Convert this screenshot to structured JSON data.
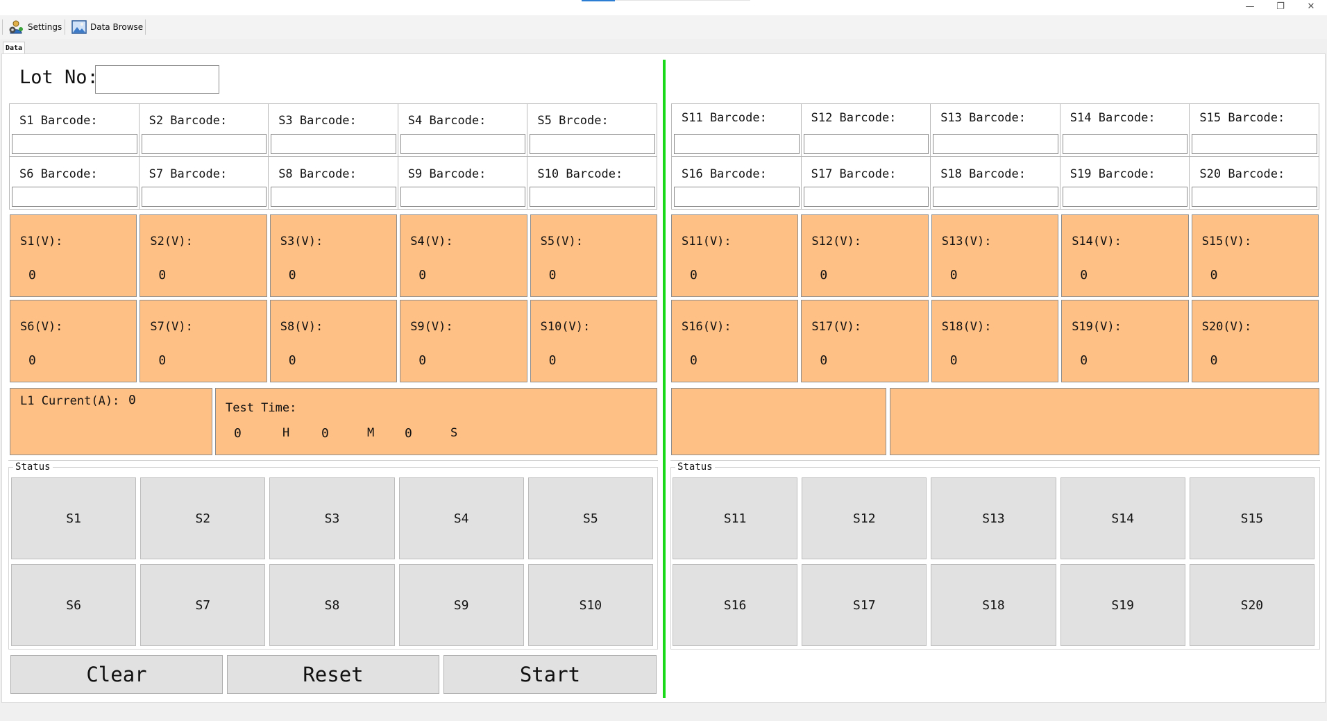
{
  "window": {
    "controls": {
      "minimize": "—",
      "restore": "❐",
      "close": "✕"
    }
  },
  "toolbar": {
    "settings_label": "Settings",
    "settings_icon": "settings-person-gear-icon",
    "data_browse_label": "Data Browse",
    "data_browse_icon": "image-picture-icon"
  },
  "tabs": {
    "data": "Data"
  },
  "lot": {
    "label": "Lot No:",
    "value": ""
  },
  "left": {
    "barcodes": [
      {
        "label": "S1 Barcode:",
        "value": ""
      },
      {
        "label": "S2 Barcode:",
        "value": ""
      },
      {
        "label": "S3 Barcode:",
        "value": ""
      },
      {
        "label": "S4 Barcode:",
        "value": ""
      },
      {
        "label": "S5 Brcode:",
        "value": ""
      },
      {
        "label": "S6 Barcode:",
        "value": ""
      },
      {
        "label": "S7 Barcode:",
        "value": ""
      },
      {
        "label": "S8 Barcode:",
        "value": ""
      },
      {
        "label": "S9 Barcode:",
        "value": ""
      },
      {
        "label": "S10 Barcode:",
        "value": ""
      }
    ],
    "voltages": [
      {
        "label": "S1(V):",
        "value": "0"
      },
      {
        "label": "S2(V):",
        "value": "0"
      },
      {
        "label": "S3(V):",
        "value": "0"
      },
      {
        "label": "S4(V):",
        "value": "0"
      },
      {
        "label": "S5(V):",
        "value": "0"
      },
      {
        "label": "S6(V):",
        "value": "0"
      },
      {
        "label": "S7(V):",
        "value": "0"
      },
      {
        "label": "S8(V):",
        "value": "0"
      },
      {
        "label": "S9(V):",
        "value": "0"
      },
      {
        "label": "S10(V):",
        "value": "0"
      }
    ],
    "current": {
      "label": "L1 Current(A):",
      "value": "0"
    },
    "test_time": {
      "label": "Test Time:",
      "hours": "0",
      "h_unit": "H",
      "minutes": "0",
      "m_unit": "M",
      "seconds": "0",
      "s_unit": "S"
    },
    "status_title": "Status",
    "status": [
      "S1",
      "S2",
      "S3",
      "S4",
      "S5",
      "S6",
      "S7",
      "S8",
      "S9",
      "S10"
    ]
  },
  "right": {
    "barcodes": [
      {
        "label": "S11 Barcode:",
        "value": ""
      },
      {
        "label": "S12 Barcode:",
        "value": ""
      },
      {
        "label": "S13 Barcode:",
        "value": ""
      },
      {
        "label": "S14 Barcode:",
        "value": ""
      },
      {
        "label": "S15 Barcode:",
        "value": ""
      },
      {
        "label": "S16 Barcode:",
        "value": ""
      },
      {
        "label": "S17 Barcode:",
        "value": ""
      },
      {
        "label": "S18 Barcode:",
        "value": ""
      },
      {
        "label": "S19 Barcode:",
        "value": ""
      },
      {
        "label": "S20 Barcode:",
        "value": ""
      }
    ],
    "voltages": [
      {
        "label": "S11(V):",
        "value": "0"
      },
      {
        "label": "S12(V):",
        "value": "0"
      },
      {
        "label": "S13(V):",
        "value": "0"
      },
      {
        "label": "S14(V):",
        "value": "0"
      },
      {
        "label": "S15(V):",
        "value": "0"
      },
      {
        "label": "S16(V):",
        "value": "0"
      },
      {
        "label": "S17(V):",
        "value": "0"
      },
      {
        "label": "S18(V):",
        "value": "0"
      },
      {
        "label": "S19(V):",
        "value": "0"
      },
      {
        "label": "S20(V):",
        "value": "0"
      }
    ],
    "status_title": "Status",
    "status": [
      "S11",
      "S12",
      "S13",
      "S14",
      "S15",
      "S16",
      "S17",
      "S18",
      "S19",
      "S20"
    ]
  },
  "actions": {
    "clear": "Clear",
    "reset": "Reset",
    "start": "Start"
  },
  "colors": {
    "orange_panel": "#ffc085",
    "divider_green": "#19d919",
    "status_gray": "#e1e1e1"
  }
}
